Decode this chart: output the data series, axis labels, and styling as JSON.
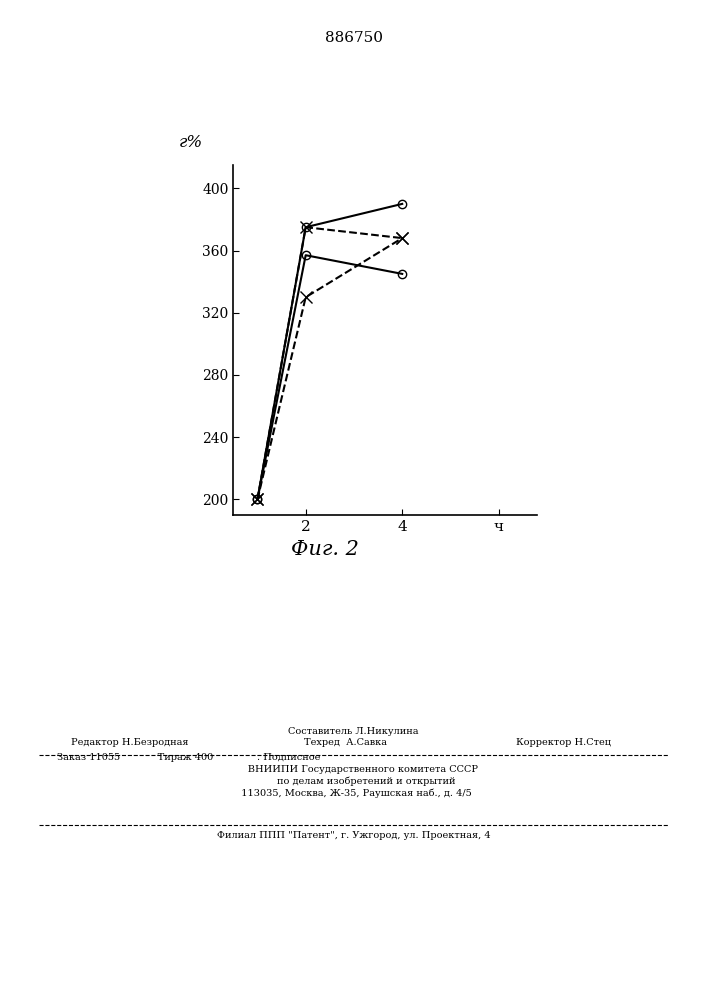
{
  "title": "886750",
  "ylabel": "г%",
  "ylim": [
    190,
    415
  ],
  "xlim": [
    0.5,
    6.8
  ],
  "yticks": [
    200,
    240,
    280,
    320,
    360,
    400
  ],
  "xticks": [
    2,
    4,
    6
  ],
  "xticklabels": [
    "2",
    "4",
    "ч"
  ],
  "fig_caption": "Фиг. 2",
  "line1": {
    "x": [
      1,
      2,
      4
    ],
    "y": [
      200,
      375,
      390
    ],
    "style": "-",
    "marker": "o",
    "color": "black",
    "markersize": 6,
    "fillstyle": "none",
    "linewidth": 1.5
  },
  "line2": {
    "x": [
      1,
      2,
      4
    ],
    "y": [
      200,
      357,
      345
    ],
    "style": "-",
    "marker": "o",
    "color": "black",
    "markersize": 6,
    "fillstyle": "none",
    "linewidth": 1.5
  },
  "line3": {
    "x": [
      1,
      2,
      4
    ],
    "y": [
      200,
      330,
      368
    ],
    "style": "--",
    "marker": "x",
    "color": "black",
    "markersize": 8,
    "linewidth": 1.5
  },
  "line4": {
    "x": [
      1,
      2,
      4
    ],
    "y": [
      200,
      375,
      368
    ],
    "style": "--",
    "marker": "x",
    "color": "black",
    "markersize": 8,
    "linewidth": 1.5
  },
  "background_color": "#ffffff",
  "footer_col1_line1": "Редактор Н.Безродная",
  "footer_col2_line1": "Составитель Л.Никулина",
  "footer_col2_line2": "Техред  А.Савка",
  "footer_col3_line2": "Корректор Н.Стец",
  "footer2_line1": "Заказ 11055            Тираж 400              . Подписное",
  "footer2_line2": "      ВНИИПИ Государственного комитета СССР",
  "footer2_line3": "        по делам изобретений и открытий",
  "footer2_line4": "  113035, Москва, Ж-35, Раушская наб., д. 4/5",
  "footer3": "Филиал ППП \"Патент\", г. Ужгород, ул. Проектная, 4"
}
